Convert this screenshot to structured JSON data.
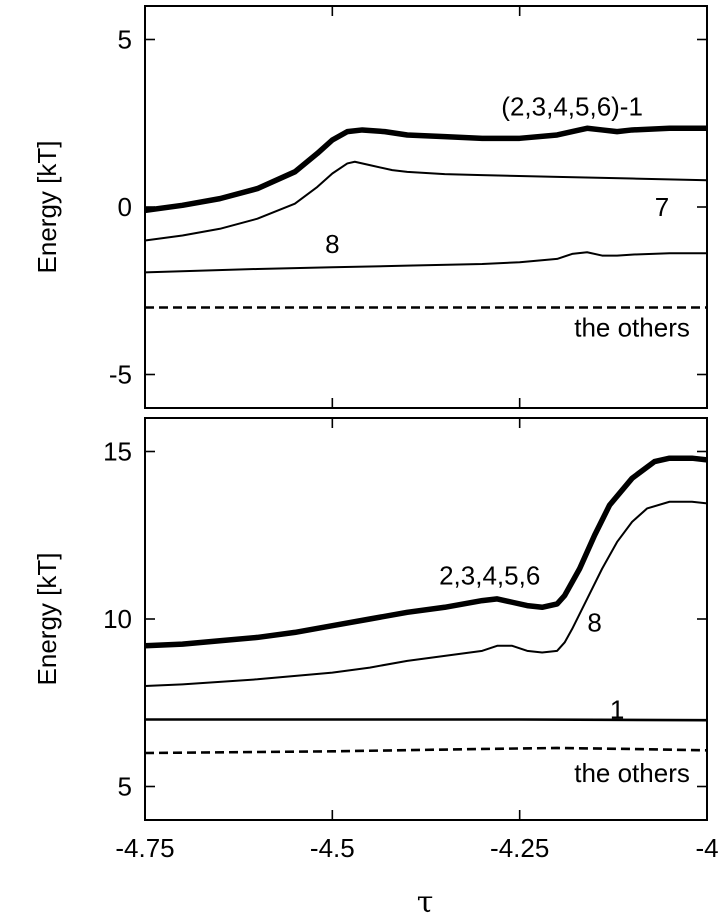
{
  "chart_data": {
    "type": "line",
    "shared_xlabel": "τ",
    "panels": [
      {
        "ylabel": "Energy [kT]",
        "xlim": [
          -4.75,
          -4.0
        ],
        "ylim": [
          -6,
          6
        ],
        "xticks": [
          -4.75,
          -4.5,
          -4.25,
          -4.0
        ],
        "yticks": [
          -5,
          0,
          5
        ],
        "ytick_labels": [
          "-5",
          "0",
          "5"
        ],
        "series": [
          {
            "label": "(2,3,4,5,6)-1",
            "style": "thick",
            "x": [
              -4.75,
              -4.7,
              -4.65,
              -4.6,
              -4.55,
              -4.52,
              -4.5,
              -4.48,
              -4.46,
              -4.43,
              -4.4,
              -4.35,
              -4.3,
              -4.25,
              -4.2,
              -4.17,
              -4.16,
              -4.14,
              -4.12,
              -4.1,
              -4.05,
              -4.0
            ],
            "y": [
              -0.1,
              0.05,
              0.25,
              0.55,
              1.05,
              1.6,
              2.0,
              2.25,
              2.3,
              2.25,
              2.15,
              2.1,
              2.05,
              2.05,
              2.15,
              2.3,
              2.35,
              2.3,
              2.25,
              2.3,
              2.35,
              2.35
            ]
          },
          {
            "label": "7",
            "style": "thin",
            "x": [
              -4.75,
              -4.7,
              -4.65,
              -4.6,
              -4.55,
              -4.52,
              -4.5,
              -4.48,
              -4.47,
              -4.45,
              -4.42,
              -4.4,
              -4.35,
              -4.3,
              -4.2,
              -4.1,
              -4.0
            ],
            "y": [
              -1.0,
              -0.85,
              -0.65,
              -0.35,
              0.1,
              0.6,
              1.0,
              1.3,
              1.35,
              1.25,
              1.1,
              1.05,
              0.98,
              0.95,
              0.9,
              0.85,
              0.8
            ]
          },
          {
            "label": "8",
            "style": "thin",
            "x": [
              -4.75,
              -4.6,
              -4.5,
              -4.4,
              -4.3,
              -4.25,
              -4.2,
              -4.18,
              -4.16,
              -4.14,
              -4.12,
              -4.1,
              -4.05,
              -4.0
            ],
            "y": [
              -1.95,
              -1.85,
              -1.8,
              -1.75,
              -1.7,
              -1.65,
              -1.55,
              -1.4,
              -1.35,
              -1.45,
              -1.45,
              -1.42,
              -1.38,
              -1.38
            ]
          },
          {
            "label": "the others",
            "style": "dashed",
            "x": [
              -4.75,
              -4.0
            ],
            "y": [
              -3.0,
              -3.0
            ]
          }
        ],
        "annotations": [
          {
            "text": "(2,3,4,5,6)-1",
            "x": -4.18,
            "y": 3.0
          },
          {
            "text": "7",
            "x": -4.06,
            "y": 0.0
          },
          {
            "text": "8",
            "x": -4.5,
            "y": -1.1
          },
          {
            "text": "the others",
            "x": -4.1,
            "y": -3.6
          }
        ]
      },
      {
        "ylabel": "Energy [kT]",
        "xlim": [
          -4.75,
          -4.0
        ],
        "ylim": [
          4,
          16
        ],
        "xticks": [
          -4.75,
          -4.5,
          -4.25,
          -4.0
        ],
        "xtick_labels": [
          "-4.75",
          "-4.5",
          "-4.25",
          "-4"
        ],
        "yticks": [
          5,
          10,
          15
        ],
        "ytick_labels": [
          "5",
          "10",
          "15"
        ],
        "series": [
          {
            "label": "2,3,4,5,6",
            "style": "thick",
            "x": [
              -4.75,
              -4.7,
              -4.65,
              -4.6,
              -4.55,
              -4.5,
              -4.45,
              -4.4,
              -4.35,
              -4.3,
              -4.28,
              -4.26,
              -4.24,
              -4.22,
              -4.2,
              -4.19,
              -4.17,
              -4.15,
              -4.13,
              -4.1,
              -4.07,
              -4.05,
              -4.02,
              -4.0
            ],
            "y": [
              9.2,
              9.25,
              9.35,
              9.45,
              9.6,
              9.8,
              10.0,
              10.2,
              10.35,
              10.55,
              10.6,
              10.5,
              10.4,
              10.35,
              10.45,
              10.7,
              11.5,
              12.5,
              13.4,
              14.2,
              14.7,
              14.8,
              14.8,
              14.75
            ]
          },
          {
            "label": "8",
            "style": "thin",
            "x": [
              -4.75,
              -4.7,
              -4.6,
              -4.5,
              -4.45,
              -4.4,
              -4.35,
              -4.3,
              -4.28,
              -4.26,
              -4.24,
              -4.22,
              -4.2,
              -4.19,
              -4.18,
              -4.16,
              -4.14,
              -4.12,
              -4.1,
              -4.08,
              -4.05,
              -4.02,
              -4.0
            ],
            "y": [
              8.0,
              8.05,
              8.2,
              8.4,
              8.55,
              8.75,
              8.9,
              9.05,
              9.2,
              9.2,
              9.05,
              9.0,
              9.05,
              9.3,
              9.7,
              10.6,
              11.5,
              12.3,
              12.9,
              13.3,
              13.5,
              13.5,
              13.45
            ]
          },
          {
            "label": "1",
            "style": "medium",
            "x": [
              -4.75,
              -4.5,
              -4.25,
              -4.0
            ],
            "y": [
              7.0,
              7.0,
              7.0,
              6.98
            ]
          },
          {
            "label": "the others",
            "style": "dashed",
            "x": [
              -4.75,
              -4.5,
              -4.3,
              -4.2,
              -4.1,
              -4.0
            ],
            "y": [
              6.0,
              6.05,
              6.12,
              6.15,
              6.12,
              6.08
            ]
          }
        ],
        "annotations": [
          {
            "text": "2,3,4,5,6",
            "x": -4.29,
            "y": 11.3
          },
          {
            "text": "8",
            "x": -4.15,
            "y": 9.9
          },
          {
            "text": "1",
            "x": -4.12,
            "y": 7.3
          },
          {
            "text": "the others",
            "x": -4.1,
            "y": 5.4
          }
        ]
      }
    ]
  }
}
